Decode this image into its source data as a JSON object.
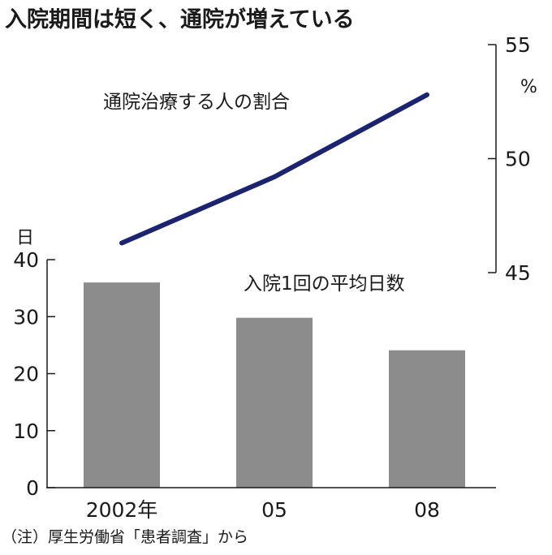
{
  "chart_data": {
    "type": "bar+line",
    "title": "入院期間は短く、通院が増えている",
    "categories": [
      "2002年",
      "05",
      "08"
    ],
    "bar_series": {
      "name": "入院1回の平均日数",
      "values": [
        36,
        29.8,
        24.1
      ],
      "axis": "left",
      "unit": "日",
      "ylim": [
        0,
        40
      ],
      "ticks": [
        "0",
        "10",
        "20",
        "30",
        "40"
      ],
      "color": "#8c8c8c"
    },
    "line_series": {
      "name": "通院治療する人の割合",
      "values": [
        46.3,
        49.2,
        52.8
      ],
      "axis": "right",
      "unit": "%",
      "ylim": [
        45,
        55
      ],
      "ticks": [
        "45",
        "50",
        "55"
      ],
      "color": "#1c2470"
    },
    "note": "（注）厚生労働省「患者調査」から"
  }
}
